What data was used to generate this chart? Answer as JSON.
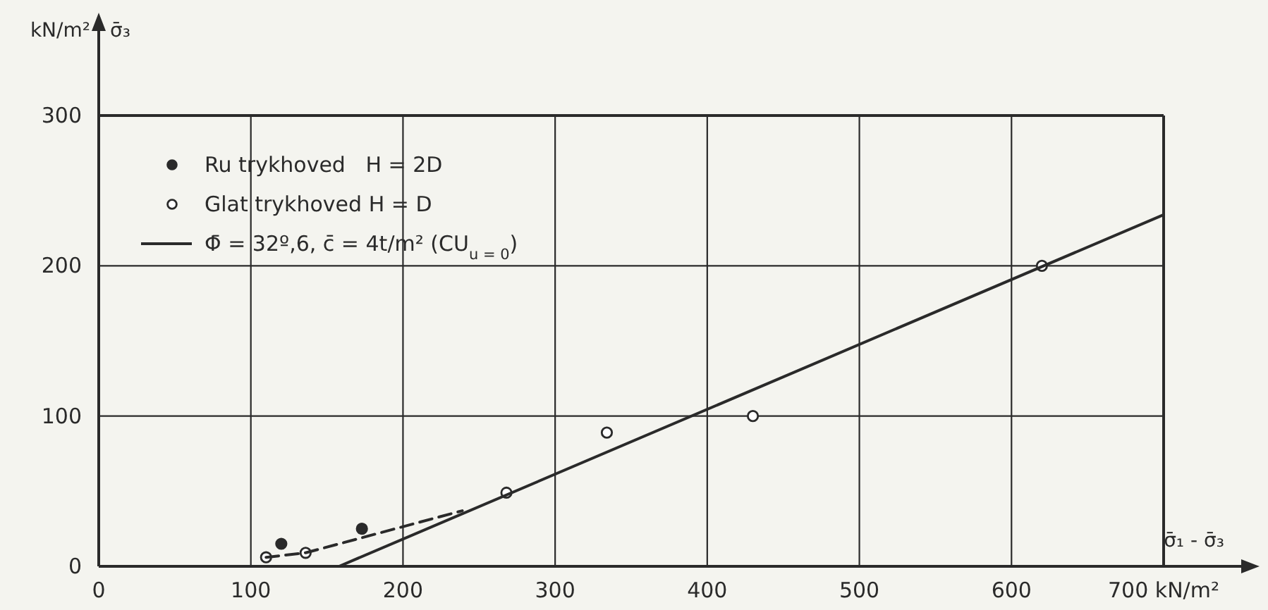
{
  "chart_data": {
    "type": "scatter",
    "xlabel": "σ̄₁ - σ̄₃",
    "ylabel": "σ̄₃",
    "annotations": [
      "kN/m²"
    ],
    "xlim": [
      0,
      700
    ],
    "xticks": [
      0,
      100,
      200,
      300,
      400,
      500,
      600,
      {
        "value": 700,
        "label": "700 kN/m²"
      }
    ],
    "ylim": [
      0,
      300
    ],
    "yticks": [
      0,
      100,
      200,
      300
    ],
    "grid": true,
    "legend": "top left",
    "marker": "circle",
    "series": [
      {
        "name": "Ru trykhoved   H = 2D",
        "color": "#2a2a2a",
        "x": [
          120,
          173
        ],
        "values": [
          15,
          25
        ]
      },
      {
        "name": "Glat trykhoved H = D",
        "color": "#ffffff",
        "x": [
          110,
          136,
          268,
          334,
          430,
          620
        ],
        "values": [
          6,
          9,
          49,
          89,
          100,
          200
        ]
      },
      {
        "name": "Φ̄ = 32º,6, c̄ = 4t/m² (CU$_{u = 0}$)",
        "type": "line",
        "color": "#2a2a2a",
        "line_style": "solid",
        "marker": "none",
        "x": [
          158,
          700
        ],
        "values": [
          0,
          234
        ]
      },
      {
        "type": "line",
        "color": "#2a2a2a",
        "line_style": "dashed",
        "marker": "none",
        "x": [
          110,
          136,
          239
        ],
        "values": [
          6,
          9,
          37
        ]
      }
    ]
  }
}
